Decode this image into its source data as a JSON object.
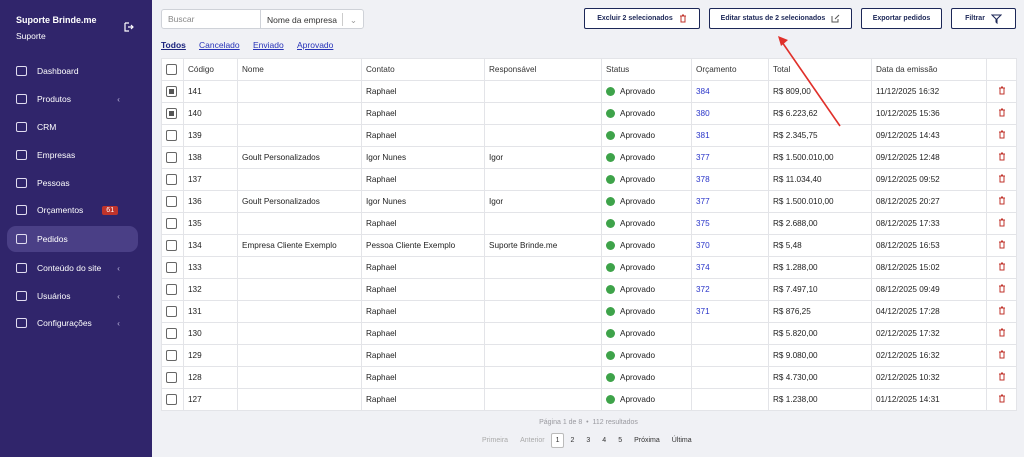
{
  "sidebar": {
    "company": "Suporte Brinde.me",
    "role": "Suporte",
    "menu": [
      {
        "label": "Dashboard"
      },
      {
        "label": "Produtos",
        "submenu": true
      },
      {
        "label": "CRM"
      },
      {
        "label": "Empresas"
      },
      {
        "label": "Pessoas"
      },
      {
        "label": "Orçamentos",
        "badge": "61"
      },
      {
        "label": "Pedidos",
        "active": true
      },
      {
        "label": "Conteúdo do site",
        "submenu": true
      },
      {
        "label": "Usuários",
        "submenu": true
      },
      {
        "label": "Configurações",
        "submenu": true
      }
    ]
  },
  "toolbar": {
    "search_placeholder": "Buscar",
    "select": "Nome da empresa",
    "buttons": [
      "Excluir 2 selecionados",
      "Editar status de 2 selecionados",
      "Exportar pedidos",
      "Filtrar"
    ]
  },
  "tabs": {
    "items": [
      "Todos",
      "Cancelado",
      "Enviado",
      "Aprovado"
    ],
    "active": 0
  },
  "table": {
    "headers": [
      "Código",
      "Nome",
      "Contato",
      "Responsável",
      "Status",
      "Orçamento",
      "Total",
      "Data da emissão"
    ],
    "rows": [
      {
        "codigo": "141",
        "contato": "Raphael",
        "status": "Aprovado",
        "orcamento": "384",
        "total": "R$ 809,00",
        "data": "11/12/2025 16:32",
        "selected": true
      },
      {
        "codigo": "140",
        "contato": "Raphael",
        "status": "Aprovado",
        "orcamento": "380",
        "total": "R$ 6.223,62",
        "data": "10/12/2025 15:36",
        "selected": true
      },
      {
        "codigo": "139",
        "contato": "Raphael",
        "status": "Aprovado",
        "orcamento": "381",
        "total": "R$ 2.345,75",
        "data": "09/12/2025 14:43"
      },
      {
        "codigo": "138",
        "nome": "Goult Personalizados",
        "contato": "Igor Nunes",
        "responsavel": "Igor",
        "status": "Aprovado",
        "orcamento": "377",
        "total": "R$ 1.500.010,00",
        "data": "09/12/2025 12:48"
      },
      {
        "codigo": "137",
        "contato": "Raphael",
        "status": "Aprovado",
        "orcamento": "378",
        "total": "R$ 11.034,40",
        "data": "09/12/2025 09:52"
      },
      {
        "codigo": "136",
        "nome": "Goult Personalizados",
        "contato": "Igor Nunes",
        "responsavel": "Igor",
        "status": "Aprovado",
        "orcamento": "377",
        "total": "R$ 1.500.010,00",
        "data": "08/12/2025 20:27"
      },
      {
        "codigo": "135",
        "contato": "Raphael",
        "status": "Aprovado",
        "orcamento": "375",
        "total": "R$ 2.688,00",
        "data": "08/12/2025 17:33"
      },
      {
        "codigo": "134",
        "nome": "Empresa Cliente Exemplo",
        "contato": "Pessoa Cliente Exemplo",
        "responsavel": "Suporte Brinde.me",
        "status": "Aprovado",
        "orcamento": "370",
        "total": "R$ 5,48",
        "data": "08/12/2025 16:53"
      },
      {
        "codigo": "133",
        "contato": "Raphael",
        "status": "Aprovado",
        "orcamento": "374",
        "total": "R$ 1.288,00",
        "data": "08/12/2025 15:02"
      },
      {
        "codigo": "132",
        "contato": "Raphael",
        "status": "Aprovado",
        "orcamento": "372",
        "total": "R$ 7.497,10",
        "data": "08/12/2025 09:49"
      },
      {
        "codigo": "131",
        "contato": "Raphael",
        "status": "Aprovado",
        "orcamento": "371",
        "total": "R$ 876,25",
        "data": "04/12/2025 17:28"
      },
      {
        "codigo": "130",
        "contato": "Raphael",
        "status": "Aprovado",
        "total": "R$ 5.820,00",
        "data": "02/12/2025 17:32"
      },
      {
        "codigo": "129",
        "contato": "Raphael",
        "status": "Aprovado",
        "total": "R$ 9.080,00",
        "data": "02/12/2025 16:32"
      },
      {
        "codigo": "128",
        "contato": "Raphael",
        "status": "Aprovado",
        "total": "R$ 4.730,00",
        "data": "02/12/2025 10:32"
      },
      {
        "codigo": "127",
        "contato": "Raphael",
        "status": "Aprovado",
        "total": "R$ 1.238,00",
        "data": "01/12/2025 14:31"
      }
    ]
  },
  "footer": {
    "page_info": "Página 1 de 8",
    "separator": "•",
    "results": "112 resultados",
    "pagination": {
      "first": "Primeira",
      "prev": "Anterior",
      "pages": [
        "1",
        "2",
        "3",
        "4",
        "5"
      ],
      "current": 0,
      "next": "Próxima",
      "last": "Última"
    }
  }
}
